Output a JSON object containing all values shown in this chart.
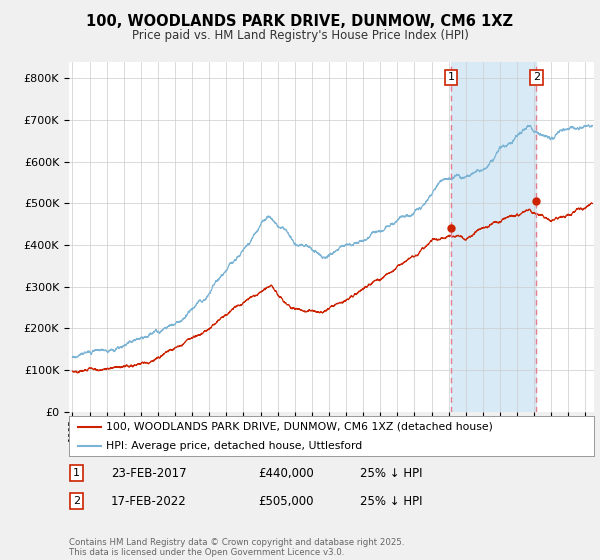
{
  "title": "100, WOODLANDS PARK DRIVE, DUNMOW, CM6 1XZ",
  "subtitle": "Price paid vs. HM Land Registry's House Price Index (HPI)",
  "ylabel_ticks": [
    "£0",
    "£100K",
    "£200K",
    "£300K",
    "£400K",
    "£500K",
    "£600K",
    "£700K",
    "£800K"
  ],
  "ytick_values": [
    0,
    100000,
    200000,
    300000,
    400000,
    500000,
    600000,
    700000,
    800000
  ],
  "ylim": [
    0,
    840000
  ],
  "xlim_start": 1994.8,
  "xlim_end": 2025.5,
  "hpi_color": "#7ab3d4",
  "price_color": "#cc2200",
  "vline_color": "#e08090",
  "shade_color": "#d8eaf5",
  "transaction1_date": "23-FEB-2017",
  "transaction1_price": "£440,000",
  "transaction1_pct": "25% ↓ HPI",
  "transaction2_date": "17-FEB-2022",
  "transaction2_price": "£505,000",
  "transaction2_pct": "25% ↓ HPI",
  "legend_label1": "100, WOODLANDS PARK DRIVE, DUNMOW, CM6 1XZ (detached house)",
  "legend_label2": "HPI: Average price, detached house, Uttlesford",
  "footer": "Contains HM Land Registry data © Crown copyright and database right 2025.\nThis data is licensed under the Open Government Licence v3.0.",
  "background_color": "#f0f0f0",
  "plot_background": "#ffffff"
}
